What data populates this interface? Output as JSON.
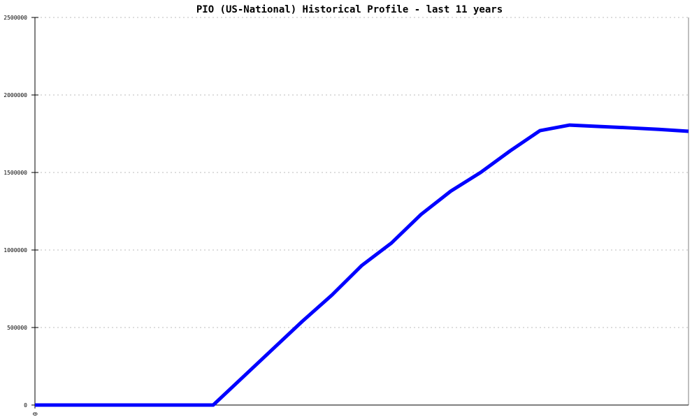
{
  "chart_data": {
    "type": "line",
    "title": "PIO (US-National) Historical Profile - last 11 years",
    "xlabel": "",
    "ylabel": "",
    "x_tick_labels": [
      "0"
    ],
    "y_ticks": [
      0,
      500000,
      1000000,
      1500000,
      2000000,
      2500000
    ],
    "ylim": [
      0,
      2500000
    ],
    "grid": true,
    "line_color": "#0000ff",
    "values": [
      0,
      0,
      0,
      0,
      0,
      0,
      0,
      180000,
      360000,
      540000,
      710000,
      900000,
      1045000,
      1230000,
      1380000,
      1500000,
      1640000,
      1770000,
      1806000,
      1797000,
      1788000,
      1778000,
      1766000
    ]
  }
}
